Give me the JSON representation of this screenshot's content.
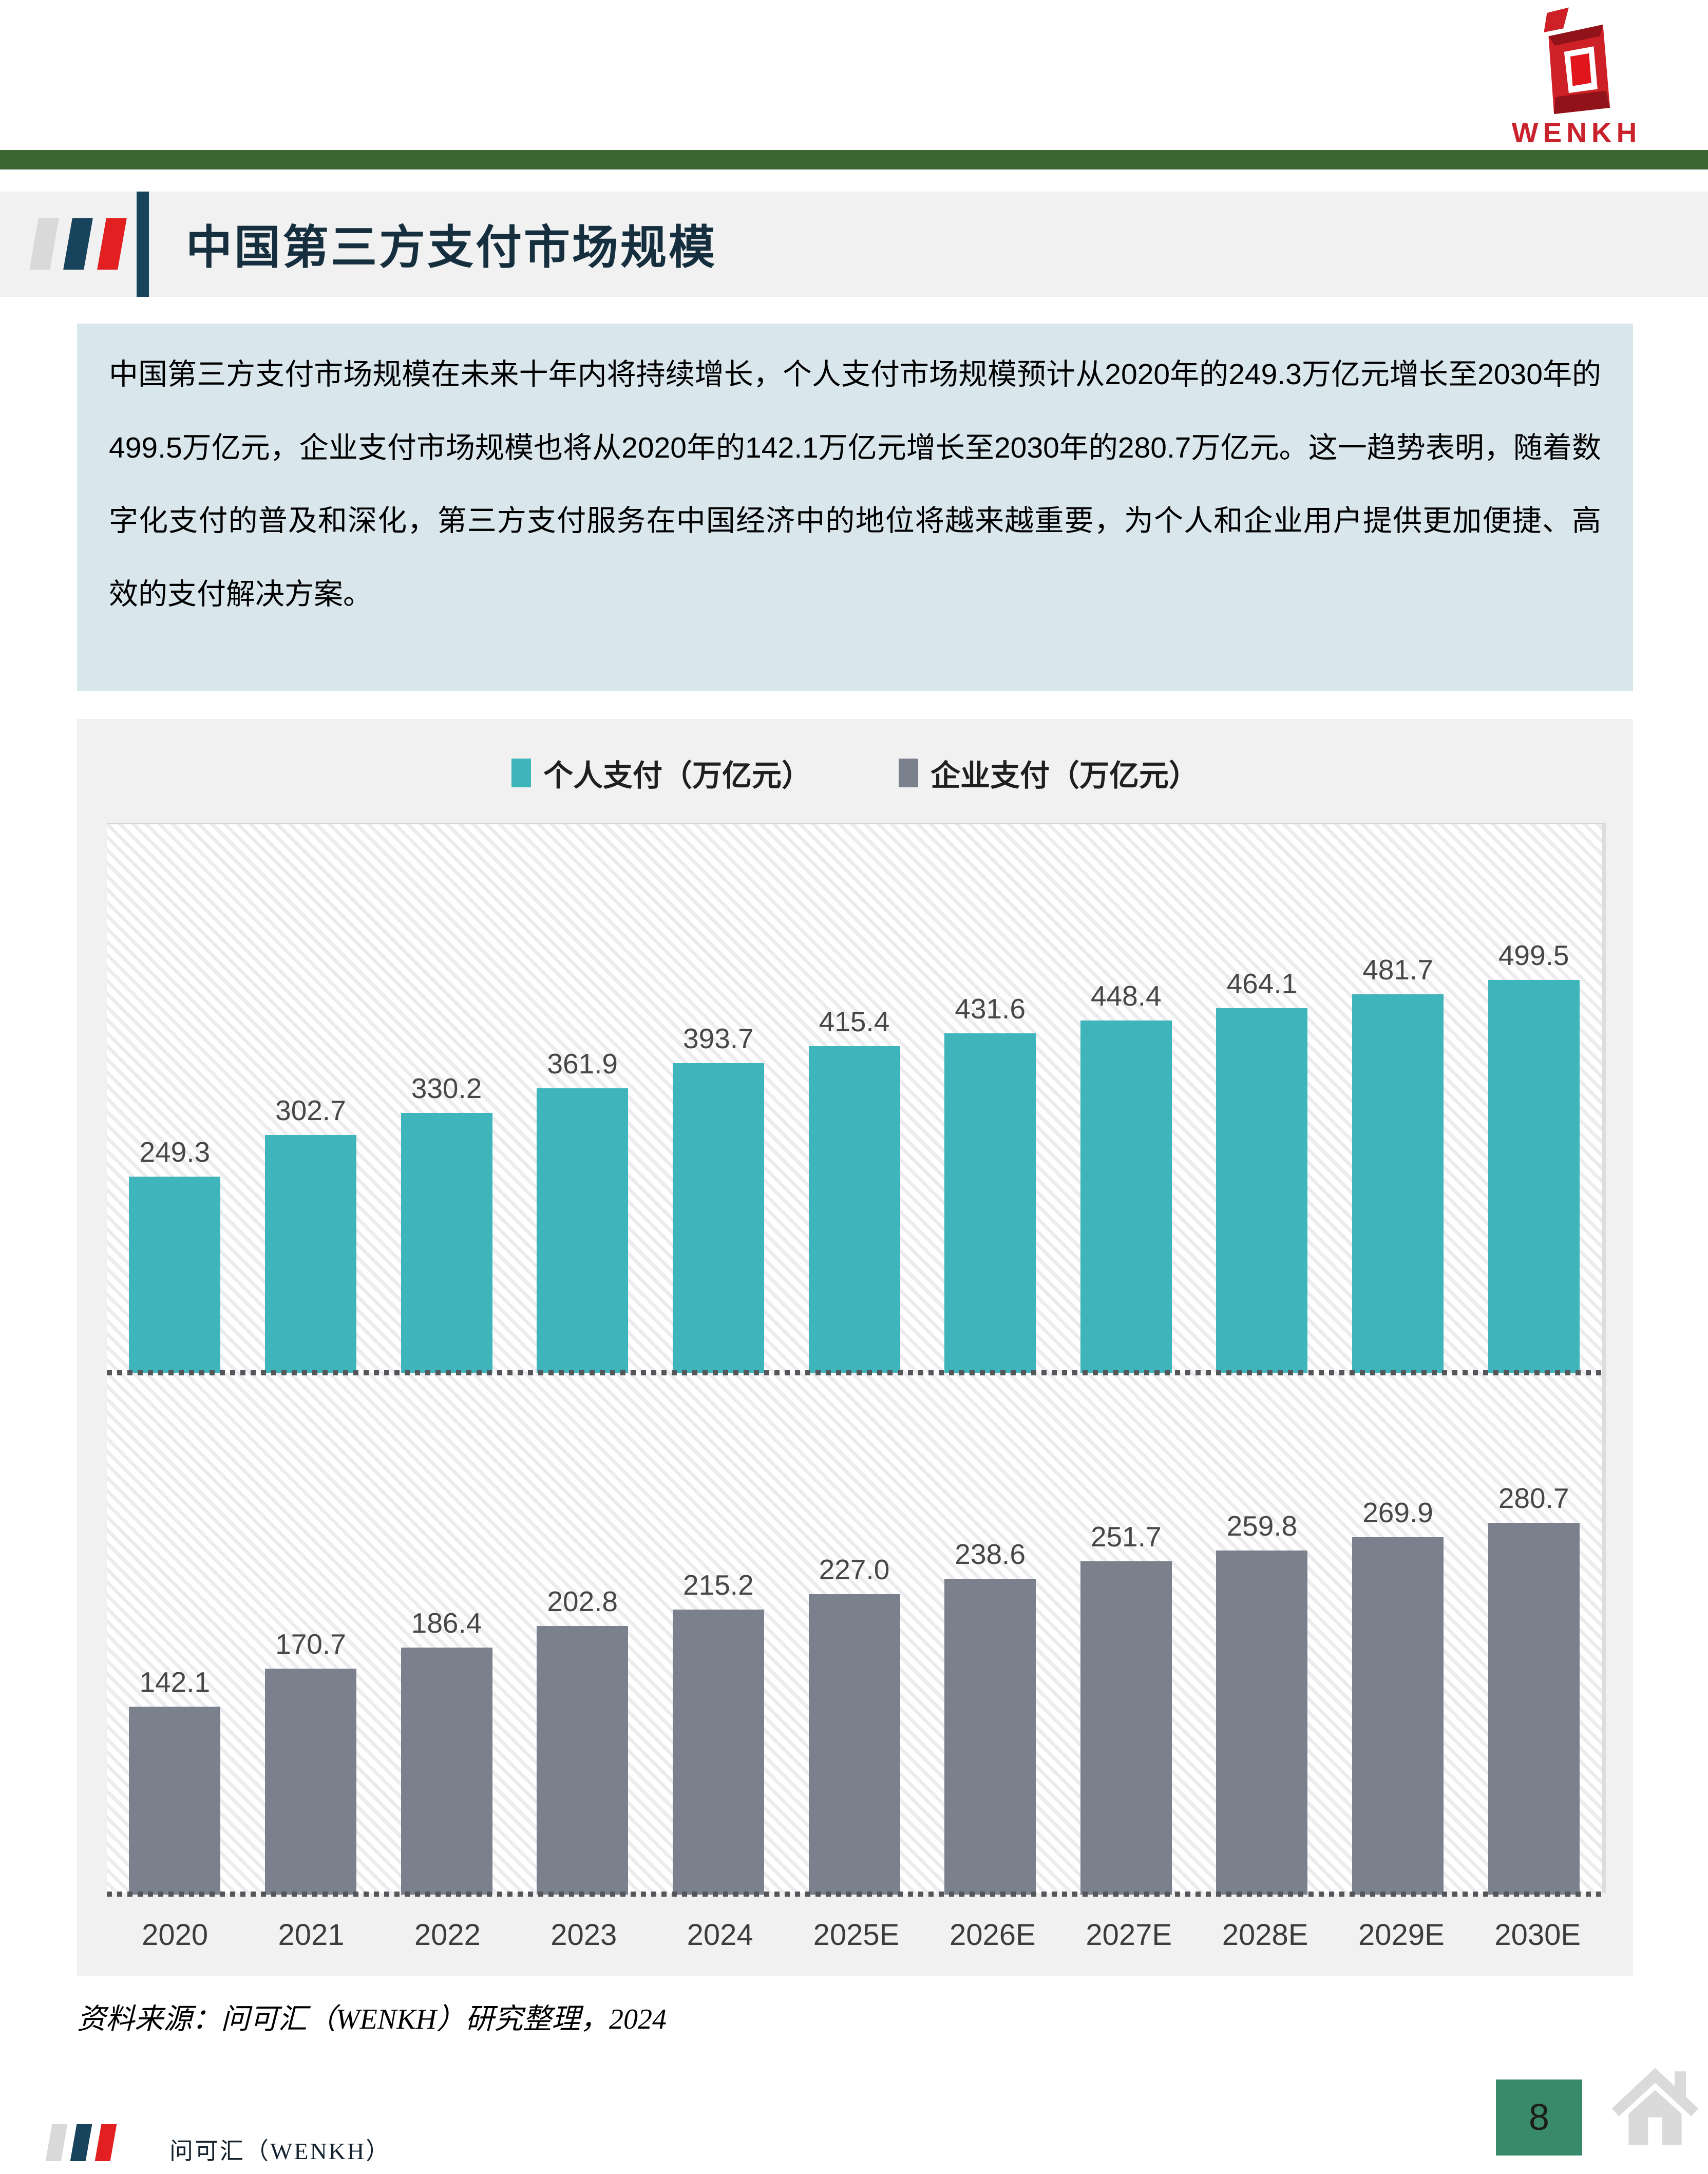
{
  "header": {
    "logo_text": "WENKH",
    "brand_color": "#c8232c"
  },
  "title_section": {
    "title": "中国第三方支付市场规模"
  },
  "intro": {
    "text": "中国第三方支付市场规模在未来十年内将持续增长，个人支付市场规模预计从2020年的249.3万亿元增长至2030年的499.5万亿元，企业支付市场规模也将从2020年的142.1万亿元增长至2030年的280.7万亿元。这一趋势表明，随着数字化支付的普及和深化，第三方支付服务在中国经济中的地位将越来越重要，为个人和企业用户提供更加便捷、高效的支付解决方案。"
  },
  "chart_data": {
    "type": "bar",
    "layout": "two stacked panels, one per series, shared category axis, dotted baselines, no gridlines, no y-axis",
    "legend_position": "top-center",
    "categories": [
      "2020",
      "2021",
      "2022",
      "2023",
      "2024",
      "2025E",
      "2026E",
      "2027E",
      "2028E",
      "2029E",
      "2030E"
    ],
    "series": [
      {
        "key": "personal",
        "name": "个人支付（万亿元）",
        "color": "#3eb5bb",
        "values": [
          249.3,
          302.7,
          330.2,
          361.9,
          393.7,
          415.4,
          431.6,
          448.4,
          464.1,
          481.7,
          499.5
        ]
      },
      {
        "key": "enterprise",
        "name": "企业支付（万亿元）",
        "color": "#7b818c",
        "values": [
          142.1,
          170.7,
          186.4,
          202.8,
          215.2,
          227.0,
          238.6,
          251.7,
          259.8,
          269.9,
          280.7
        ]
      }
    ]
  },
  "source_note": "资料来源：问可汇（WENKH）研究整理，2024",
  "footer": {
    "company": "问可汇（WENKH）",
    "page_number": "8",
    "page_box_color": "#398a6b"
  }
}
